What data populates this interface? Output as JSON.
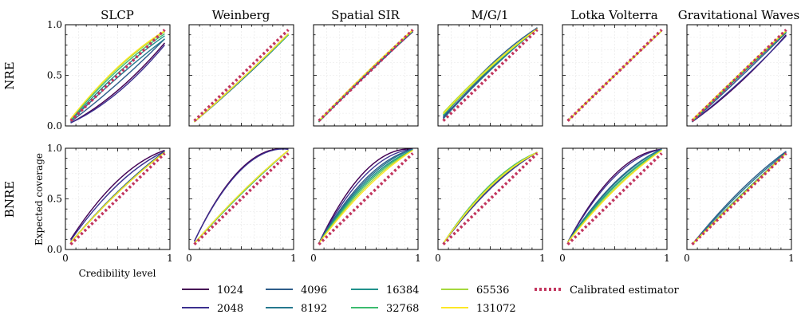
{
  "columns": [
    "SLCP",
    "Weinberg",
    "Spatial SIR",
    "M/G/1",
    "Lotka Volterra",
    "Gravitational Waves"
  ],
  "rows": [
    "NRE",
    "BNRE"
  ],
  "xlabel": "Credibility level",
  "ylabel": "Expected coverage",
  "yticks": [
    "0.0",
    "0.5",
    "1.0"
  ],
  "xticks": [
    "0",
    "1"
  ],
  "legend": {
    "budgets": [
      "1024",
      "2048",
      "4096",
      "8192",
      "16384",
      "32768",
      "65536",
      "131072"
    ],
    "calibrated_label": "Calibrated estimator"
  },
  "colors": {
    "1024": "#440154",
    "2048": "#3b2f8f",
    "4096": "#2f5d8a",
    "8192": "#25788e",
    "16384": "#21918c",
    "32768": "#3bbb6e",
    "65536": "#a5d83d",
    "131072": "#fde725",
    "calibrated": "#c2365f"
  },
  "chart_data": {
    "type": "line",
    "xlim": [
      0,
      1
    ],
    "ylim": [
      0,
      1
    ],
    "x": [
      0.05,
      0.95
    ],
    "calibrated_estimator": {
      "x": [
        0.05,
        0.95
      ],
      "y": [
        0.05,
        0.95
      ]
    },
    "panels": [
      {
        "row": "NRE",
        "col": "SLCP",
        "curves": [
          {
            "budget": "1024",
            "y0": 0.03,
            "y1": 0.82,
            "mid": 0.35
          },
          {
            "budget": "2048",
            "y0": 0.03,
            "y1": 0.8,
            "mid": 0.33
          },
          {
            "budget": "4096",
            "y0": 0.04,
            "y1": 0.86,
            "mid": 0.42
          },
          {
            "budget": "8192",
            "y0": 0.05,
            "y1": 0.86,
            "mid": 0.48
          },
          {
            "budget": "16384",
            "y0": 0.05,
            "y1": 0.89,
            "mid": 0.52
          },
          {
            "budget": "32768",
            "y0": 0.06,
            "y1": 0.91,
            "mid": 0.55
          },
          {
            "budget": "65536",
            "y0": 0.07,
            "y1": 0.93,
            "mid": 0.57
          },
          {
            "budget": "131072",
            "y0": 0.07,
            "y1": 0.94,
            "mid": 0.58
          }
        ]
      },
      {
        "row": "NRE",
        "col": "Weinberg",
        "curves": [
          {
            "budget": "1024",
            "y0": 0.04,
            "y1": 0.91,
            "mid": 0.46
          },
          {
            "budget": "2048",
            "y0": 0.04,
            "y1": 0.91,
            "mid": 0.46
          },
          {
            "budget": "4096",
            "y0": 0.04,
            "y1": 0.9,
            "mid": 0.45
          },
          {
            "budget": "8192",
            "y0": 0.04,
            "y1": 0.9,
            "mid": 0.45
          },
          {
            "budget": "16384",
            "y0": 0.04,
            "y1": 0.9,
            "mid": 0.46
          },
          {
            "budget": "32768",
            "y0": 0.04,
            "y1": 0.9,
            "mid": 0.46
          },
          {
            "budget": "65536",
            "y0": 0.04,
            "y1": 0.91,
            "mid": 0.46
          },
          {
            "budget": "131072",
            "y0": 0.04,
            "y1": 0.91,
            "mid": 0.46
          }
        ]
      },
      {
        "row": "NRE",
        "col": "Spatial SIR",
        "curves": [
          {
            "budget": "1024",
            "y0": 0.04,
            "y1": 0.93,
            "mid": 0.5
          },
          {
            "budget": "2048",
            "y0": 0.04,
            "y1": 0.93,
            "mid": 0.5
          },
          {
            "budget": "4096",
            "y0": 0.04,
            "y1": 0.93,
            "mid": 0.51
          },
          {
            "budget": "8192",
            "y0": 0.04,
            "y1": 0.94,
            "mid": 0.51
          },
          {
            "budget": "16384",
            "y0": 0.04,
            "y1": 0.94,
            "mid": 0.51
          },
          {
            "budget": "32768",
            "y0": 0.04,
            "y1": 0.94,
            "mid": 0.52
          },
          {
            "budget": "65536",
            "y0": 0.05,
            "y1": 0.94,
            "mid": 0.52
          },
          {
            "budget": "131072",
            "y0": 0.05,
            "y1": 0.95,
            "mid": 0.52
          }
        ]
      },
      {
        "row": "NRE",
        "col": "M/G/1",
        "curves": [
          {
            "budget": "1024",
            "y0": 0.08,
            "y1": 0.97,
            "mid": 0.56
          },
          {
            "budget": "2048",
            "y0": 0.08,
            "y1": 0.97,
            "mid": 0.56
          },
          {
            "budget": "4096",
            "y0": 0.09,
            "y1": 0.97,
            "mid": 0.6
          },
          {
            "budget": "8192",
            "y0": 0.07,
            "y1": 0.96,
            "mid": 0.55
          },
          {
            "budget": "16384",
            "y0": 0.1,
            "y1": 0.96,
            "mid": 0.58
          },
          {
            "budget": "32768",
            "y0": 0.11,
            "y1": 0.96,
            "mid": 0.57
          },
          {
            "budget": "65536",
            "y0": 0.13,
            "y1": 0.96,
            "mid": 0.59
          },
          {
            "budget": "131072",
            "y0": 0.12,
            "y1": 0.96,
            "mid": 0.58
          }
        ]
      },
      {
        "row": "NRE",
        "col": "Lotka Volterra",
        "curves": [
          {
            "budget": "1024",
            "y0": 0.05,
            "y1": 0.94,
            "mid": 0.5
          },
          {
            "budget": "2048",
            "y0": 0.05,
            "y1": 0.94,
            "mid": 0.5
          },
          {
            "budget": "4096",
            "y0": 0.05,
            "y1": 0.94,
            "mid": 0.5
          },
          {
            "budget": "8192",
            "y0": 0.05,
            "y1": 0.94,
            "mid": 0.5
          },
          {
            "budget": "16384",
            "y0": 0.05,
            "y1": 0.94,
            "mid": 0.5
          },
          {
            "budget": "32768",
            "y0": 0.05,
            "y1": 0.94,
            "mid": 0.5
          },
          {
            "budget": "65536",
            "y0": 0.05,
            "y1": 0.94,
            "mid": 0.5
          },
          {
            "budget": "131072",
            "y0": 0.05,
            "y1": 0.94,
            "mid": 0.5
          }
        ]
      },
      {
        "row": "NRE",
        "col": "Gravitational Waves",
        "curves": [
          {
            "budget": "1024",
            "y0": 0.04,
            "y1": 0.9,
            "mid": 0.42
          },
          {
            "budget": "2048",
            "y0": 0.04,
            "y1": 0.89,
            "mid": 0.43
          },
          {
            "budget": "4096",
            "y0": 0.04,
            "y1": 0.92,
            "mid": 0.47
          },
          {
            "budget": "8192",
            "y0": 0.05,
            "y1": 0.93,
            "mid": 0.49
          },
          {
            "budget": "16384",
            "y0": 0.05,
            "y1": 0.93,
            "mid": 0.5
          },
          {
            "budget": "32768",
            "y0": 0.05,
            "y1": 0.93,
            "mid": 0.5
          },
          {
            "budget": "65536",
            "y0": 0.05,
            "y1": 0.94,
            "mid": 0.51
          },
          {
            "budget": "131072",
            "y0": 0.06,
            "y1": 0.94,
            "mid": 0.51
          }
        ]
      },
      {
        "row": "BNRE",
        "col": "SLCP",
        "curves": [
          {
            "budget": "1024",
            "y0": 0.1,
            "y1": 0.98,
            "mid": 0.68
          },
          {
            "budget": "2048",
            "y0": 0.09,
            "y1": 0.97,
            "mid": 0.64
          },
          {
            "budget": "4096",
            "y0": 0.07,
            "y1": 0.97,
            "mid": 0.57
          },
          {
            "budget": "8192",
            "y0": 0.07,
            "y1": 0.96,
            "mid": 0.56
          },
          {
            "budget": "16384",
            "y0": 0.07,
            "y1": 0.96,
            "mid": 0.56
          },
          {
            "budget": "32768",
            "y0": 0.07,
            "y1": 0.96,
            "mid": 0.56
          },
          {
            "budget": "65536",
            "y0": 0.07,
            "y1": 0.96,
            "mid": 0.56
          },
          {
            "budget": "131072",
            "y0": 0.07,
            "y1": 0.96,
            "mid": 0.56
          }
        ]
      },
      {
        "row": "BNRE",
        "col": "Weinberg",
        "curves": [
          {
            "budget": "1024",
            "y0": 0.08,
            "y1": 0.99,
            "mid": 0.8
          },
          {
            "budget": "2048",
            "y0": 0.08,
            "y1": 0.99,
            "mid": 0.79
          },
          {
            "budget": "4096",
            "y0": 0.06,
            "y1": 0.98,
            "mid": 0.56
          },
          {
            "budget": "8192",
            "y0": 0.06,
            "y1": 0.98,
            "mid": 0.55
          },
          {
            "budget": "16384",
            "y0": 0.06,
            "y1": 0.98,
            "mid": 0.56
          },
          {
            "budget": "32768",
            "y0": 0.06,
            "y1": 0.98,
            "mid": 0.55
          },
          {
            "budget": "65536",
            "y0": 0.06,
            "y1": 0.98,
            "mid": 0.56
          },
          {
            "budget": "131072",
            "y0": 0.06,
            "y1": 0.98,
            "mid": 0.56
          }
        ]
      },
      {
        "row": "BNRE",
        "col": "Spatial SIR",
        "curves": [
          {
            "budget": "1024",
            "y0": 0.06,
            "y1": 0.99,
            "mid": 0.78
          },
          {
            "budget": "2048",
            "y0": 0.06,
            "y1": 0.99,
            "mid": 0.74
          },
          {
            "budget": "4096",
            "y0": 0.06,
            "y1": 0.99,
            "mid": 0.7
          },
          {
            "budget": "8192",
            "y0": 0.06,
            "y1": 0.99,
            "mid": 0.68
          },
          {
            "budget": "16384",
            "y0": 0.06,
            "y1": 0.98,
            "mid": 0.66
          },
          {
            "budget": "32768",
            "y0": 0.06,
            "y1": 0.98,
            "mid": 0.64
          },
          {
            "budget": "65536",
            "y0": 0.06,
            "y1": 0.98,
            "mid": 0.62
          },
          {
            "budget": "131072",
            "y0": 0.06,
            "y1": 0.98,
            "mid": 0.6
          }
        ]
      },
      {
        "row": "BNRE",
        "col": "M/G/1",
        "curves": [
          {
            "budget": "1024",
            "y0": 0.06,
            "y1": 0.96,
            "mid": 0.6
          },
          {
            "budget": "2048",
            "y0": 0.06,
            "y1": 0.96,
            "mid": 0.6
          },
          {
            "budget": "4096",
            "y0": 0.06,
            "y1": 0.96,
            "mid": 0.61
          },
          {
            "budget": "8192",
            "y0": 0.06,
            "y1": 0.96,
            "mid": 0.62
          },
          {
            "budget": "16384",
            "y0": 0.06,
            "y1": 0.96,
            "mid": 0.63
          },
          {
            "budget": "32768",
            "y0": 0.06,
            "y1": 0.96,
            "mid": 0.64
          },
          {
            "budget": "65536",
            "y0": 0.06,
            "y1": 0.96,
            "mid": 0.63
          },
          {
            "budget": "131072",
            "y0": 0.06,
            "y1": 0.96,
            "mid": 0.62
          }
        ]
      },
      {
        "row": "BNRE",
        "col": "Lotka Volterra",
        "curves": [
          {
            "budget": "1024",
            "y0": 0.07,
            "y1": 0.99,
            "mid": 0.74
          },
          {
            "budget": "2048",
            "y0": 0.07,
            "y1": 0.99,
            "mid": 0.72
          },
          {
            "budget": "4096",
            "y0": 0.07,
            "y1": 0.99,
            "mid": 0.66
          },
          {
            "budget": "8192",
            "y0": 0.07,
            "y1": 0.99,
            "mid": 0.65
          },
          {
            "budget": "16384",
            "y0": 0.07,
            "y1": 0.98,
            "mid": 0.63
          },
          {
            "budget": "32768",
            "y0": 0.07,
            "y1": 0.98,
            "mid": 0.62
          },
          {
            "budget": "65536",
            "y0": 0.07,
            "y1": 0.98,
            "mid": 0.6
          },
          {
            "budget": "131072",
            "y0": 0.07,
            "y1": 0.98,
            "mid": 0.59
          }
        ]
      },
      {
        "row": "BNRE",
        "col": "Gravitational Waves",
        "curves": [
          {
            "budget": "1024",
            "y0": 0.05,
            "y1": 0.95,
            "mid": 0.52
          },
          {
            "budget": "2048",
            "y0": 0.05,
            "y1": 0.95,
            "mid": 0.52
          },
          {
            "budget": "4096",
            "y0": 0.05,
            "y1": 0.97,
            "mid": 0.57
          },
          {
            "budget": "8192",
            "y0": 0.05,
            "y1": 0.96,
            "mid": 0.55
          },
          {
            "budget": "16384",
            "y0": 0.05,
            "y1": 0.95,
            "mid": 0.52
          },
          {
            "budget": "32768",
            "y0": 0.05,
            "y1": 0.95,
            "mid": 0.52
          },
          {
            "budget": "65536",
            "y0": 0.05,
            "y1": 0.95,
            "mid": 0.51
          },
          {
            "budget": "131072",
            "y0": 0.05,
            "y1": 0.95,
            "mid": 0.51
          }
        ]
      }
    ]
  }
}
